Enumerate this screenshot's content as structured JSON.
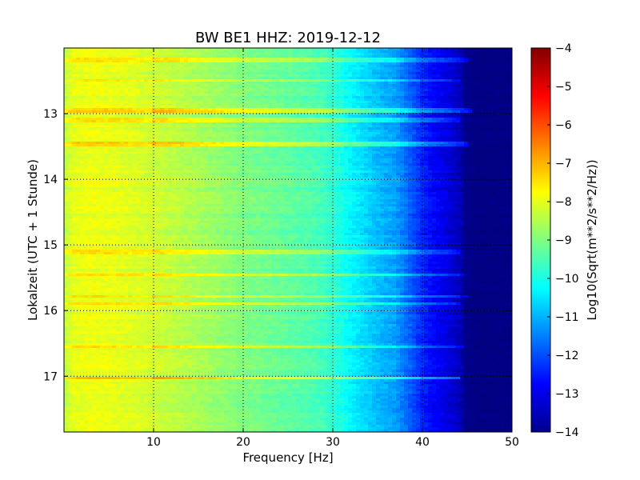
{
  "chart_data": {
    "type": "heatmap",
    "title": "BW BE1 HHZ: 2019-12-12",
    "xlabel": "Frequency [Hz]",
    "ylabel": "Lokalzeit (UTC + 1 Stunde)",
    "xlim": [
      0,
      50
    ],
    "ylim": [
      17.85,
      12.0
    ],
    "y_inverted": true,
    "grid": true,
    "grid_style": "dotted",
    "xticks": [
      10,
      20,
      30,
      40,
      50
    ],
    "yticks": [
      13,
      14,
      15,
      16,
      17
    ],
    "colormap": "jet",
    "colorbar": {
      "label": "Log10(Sqrt(m**2/s**2/Hz))",
      "range": [
        -14,
        -4
      ],
      "ticks": [
        -4,
        -5,
        -6,
        -7,
        -8,
        -9,
        -10,
        -11,
        -12,
        -13,
        -14
      ]
    },
    "frequency_profile": {
      "frequency_hz": [
        0,
        1,
        3,
        6,
        10,
        15,
        20,
        25,
        28,
        30,
        32,
        35,
        37,
        38,
        39,
        40,
        41,
        42,
        43,
        44,
        44.5,
        45,
        46,
        47,
        50
      ],
      "log10_amplitude": [
        -8.4,
        -8.0,
        -7.9,
        -8.0,
        -8.2,
        -8.6,
        -9.0,
        -9.3,
        -9.5,
        -9.8,
        -10.3,
        -10.9,
        -11.2,
        -11.6,
        -12.0,
        -12.4,
        -12.7,
        -12.9,
        -13.1,
        -13.4,
        -13.6,
        -13.8,
        -14.0,
        -14.0,
        -14.0
      ]
    },
    "noisy_time_bands": [
      {
        "time": 12.18,
        "delta": 0.9,
        "fmax": 45
      },
      {
        "time": 12.5,
        "delta": 0.8,
        "fmax": 44
      },
      {
        "time": 12.95,
        "delta": 1.2,
        "fmax": 45.5
      },
      {
        "time": 13.1,
        "delta": 0.7,
        "fmax": 43
      },
      {
        "time": 13.47,
        "delta": 1.1,
        "fmax": 45
      },
      {
        "time": 15.1,
        "delta": 0.7,
        "fmax": 44
      },
      {
        "time": 15.45,
        "delta": 0.8,
        "fmax": 44.5
      },
      {
        "time": 15.78,
        "delta": 1.0,
        "fmax": 45
      },
      {
        "time": 15.9,
        "delta": 0.8,
        "fmax": 44
      },
      {
        "time": 16.55,
        "delta": 0.9,
        "fmax": 44.5
      },
      {
        "time": 17.03,
        "delta": 1.3,
        "fmax": 44
      }
    ]
  }
}
